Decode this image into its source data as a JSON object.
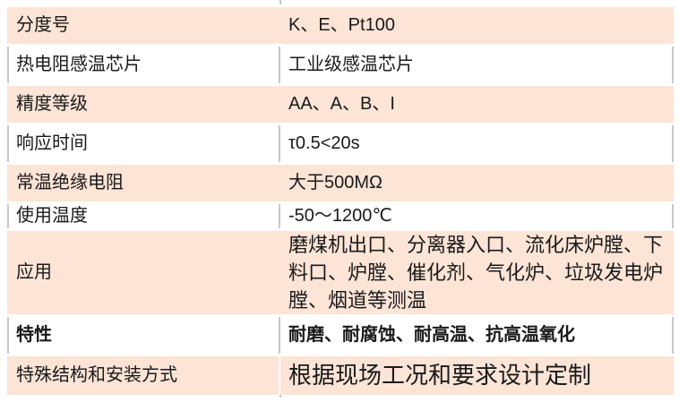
{
  "table": {
    "rows": [
      {
        "label": "分度号",
        "value": "K、E、Pt100"
      },
      {
        "label": "热电阻感温芯片",
        "value": "工业级感温芯片"
      },
      {
        "label": "精度等级",
        "value": "AA、A、B、I"
      },
      {
        "label": "响应时间",
        "value": "τ0.5<20s"
      },
      {
        "label": "常温绝缘电阻",
        "value": "大于500MΩ"
      },
      {
        "label": "使用温度",
        "value": "-50～1200℃"
      },
      {
        "label": "应用",
        "value": "磨煤机出口、分离器入口、流化床炉膛、下料口、炉膛、催化剂、气化炉、垃圾发电炉膛、烟道等测温"
      },
      {
        "label": "特性",
        "value": "耐磨、耐腐蚀、耐高温、抗高温氧化"
      },
      {
        "label": "特殊结构和安装方式",
        "value": "根据现场工况和要求设计定制"
      }
    ],
    "colors": {
      "row_fill": "#fce4d6",
      "gridline": "#c8c8c8",
      "text": "#1a1a1a"
    }
  }
}
